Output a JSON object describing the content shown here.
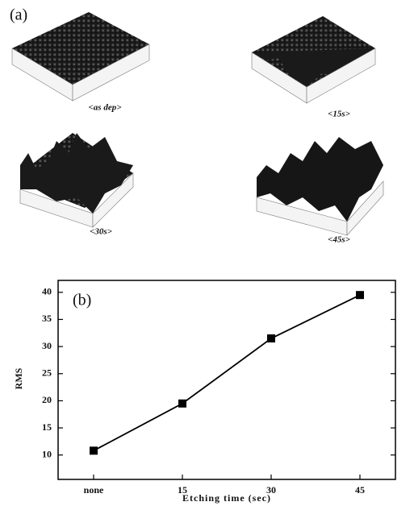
{
  "panel_a": {
    "label": "(a)",
    "captions": [
      "<as dep>",
      "<15s>",
      "<30s>",
      "<45s>"
    ]
  },
  "chart_data": {
    "type": "line",
    "panel_label": "(b)",
    "x_label": "Etching time (sec)",
    "y_label": "RMS",
    "categories": [
      "none",
      "15",
      "30",
      "45"
    ],
    "values": [
      10.8,
      19.5,
      31.5,
      39.5
    ],
    "color": "#000000",
    "ylim": [
      5.5,
      42.2
    ],
    "yticks": [
      10,
      15,
      20,
      25,
      30,
      35,
      40
    ]
  }
}
